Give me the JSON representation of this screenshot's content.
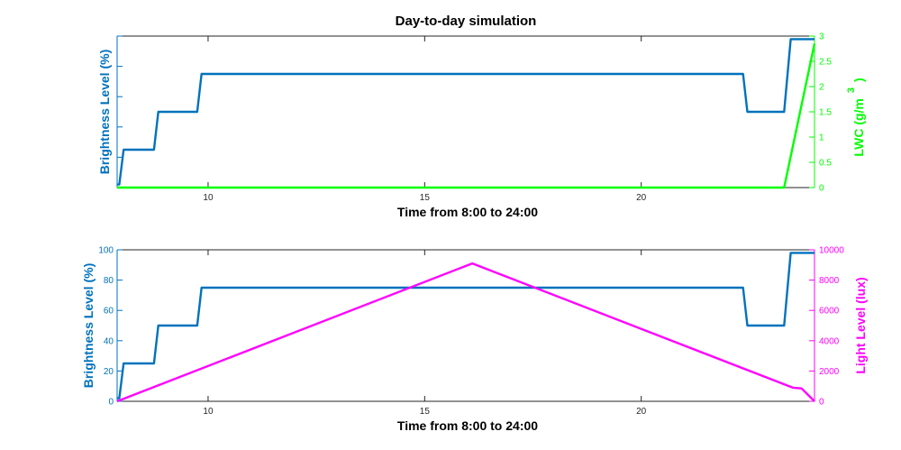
{
  "figure": {
    "title": "Day-to-day simulation"
  },
  "chart_data": [
    {
      "type": "line",
      "title": "Day-to-day simulation",
      "xlabel": "Time from 8:00 to 24:00",
      "xlim": [
        7.9,
        24
      ],
      "x_ticks": [
        10,
        15,
        20
      ],
      "grid": false,
      "left_axis": {
        "label": "Brightness Level (%)",
        "color": "#0072BD",
        "ylim": [
          0,
          100
        ],
        "ticks": [
          0,
          20,
          40,
          60,
          80,
          100
        ],
        "tick_labels_shown": false
      },
      "right_axis": {
        "label": "LWC (g/m",
        "superscript": "3",
        "label_suffix": ")",
        "color": "#00FF00",
        "ylim": [
          0,
          3
        ],
        "ticks": [
          0,
          0.5,
          1,
          1.5,
          2,
          2.5,
          3
        ],
        "tick_labels": [
          "0",
          "0.5",
          "1",
          "1.5",
          "2",
          "2.5",
          "3"
        ]
      },
      "series": [
        {
          "axis": "left",
          "color": "#0072BD",
          "x": [
            7.9,
            7.95,
            8.05,
            8.75,
            8.85,
            9.75,
            9.85,
            22.35,
            22.45,
            23.3,
            23.45,
            24
          ],
          "y": [
            2,
            2,
            25,
            25,
            50,
            50,
            75,
            75,
            50,
            50,
            98,
            98
          ]
        },
        {
          "axis": "right",
          "color": "#00FF00",
          "x": [
            7.9,
            23.3,
            24
          ],
          "y": [
            0,
            0,
            2.85
          ]
        }
      ]
    },
    {
      "type": "line",
      "xlabel": "Time from 8:00 to 24:00",
      "xlim": [
        7.9,
        24
      ],
      "x_ticks": [
        10,
        15,
        20
      ],
      "grid": false,
      "left_axis": {
        "label": "Brightness Level (%)",
        "color": "#0072BD",
        "ylim": [
          0,
          100
        ],
        "ticks": [
          0,
          20,
          40,
          60,
          80,
          100
        ],
        "tick_labels": [
          "0",
          "20",
          "40",
          "60",
          "80",
          "100"
        ]
      },
      "right_axis": {
        "label": "Light Level (lux)",
        "color": "#FF00FF",
        "ylim": [
          0,
          10000
        ],
        "ticks": [
          0,
          2000,
          4000,
          6000,
          8000,
          10000
        ],
        "tick_labels": [
          "0",
          "2000",
          "4000",
          "6000",
          "8000",
          "10000"
        ]
      },
      "series": [
        {
          "axis": "left",
          "color": "#0072BD",
          "x": [
            7.9,
            7.95,
            8.05,
            8.75,
            8.85,
            9.75,
            9.85,
            22.35,
            22.45,
            23.3,
            23.45,
            24
          ],
          "y": [
            2,
            2,
            25,
            25,
            50,
            50,
            75,
            75,
            50,
            50,
            98,
            98
          ]
        },
        {
          "axis": "right",
          "color": "#FF00FF",
          "x": [
            7.9,
            16.1,
            23.5,
            23.7,
            24
          ],
          "y": [
            0,
            9100,
            900,
            850,
            0
          ]
        }
      ]
    }
  ]
}
